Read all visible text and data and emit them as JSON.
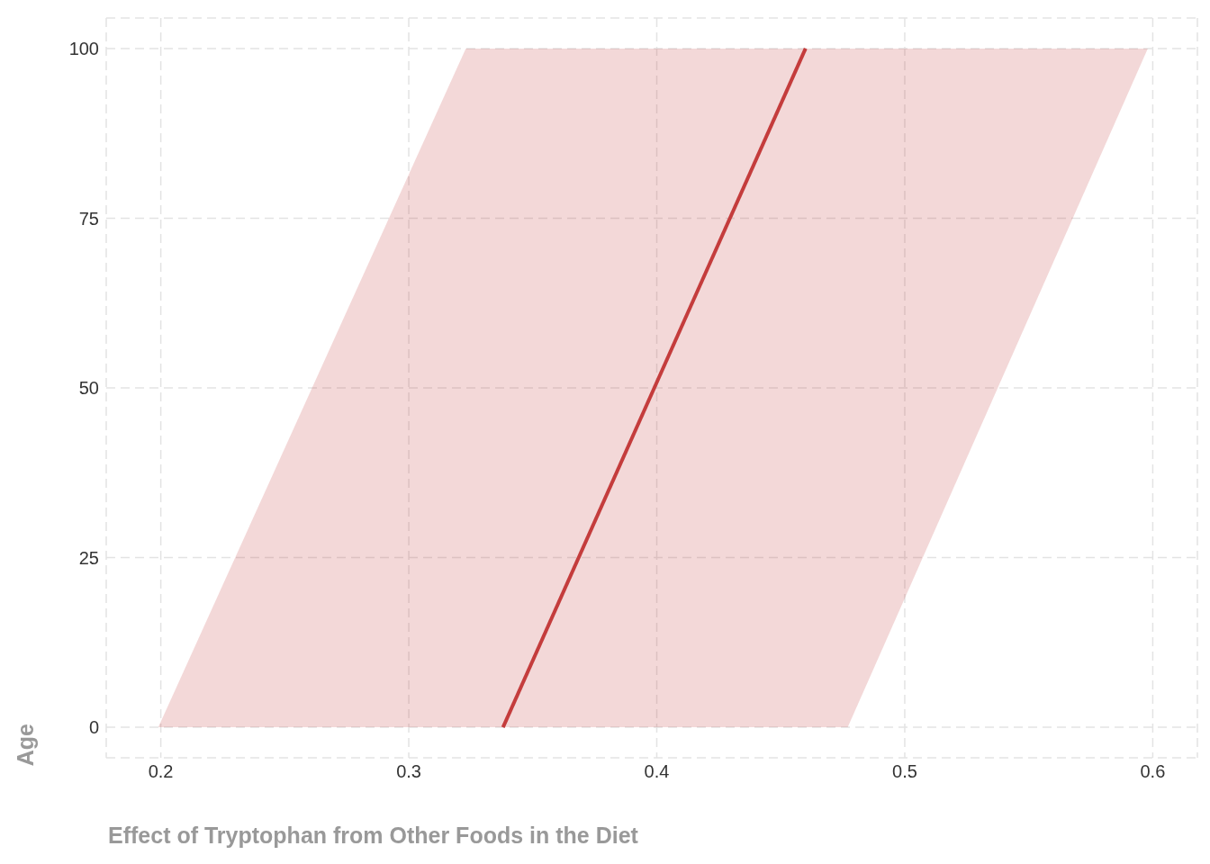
{
  "chart_data": {
    "type": "line",
    "orientation": "horizontal",
    "xlabel": "Effect of Tryptophan from Other Foods in the Diet",
    "ylabel": "Age",
    "series": [
      {
        "color": "#c43c3c",
        "x": [
          0,
          100
        ],
        "values": [
          0.338,
          0.46
        ],
        "lower": [
          0.199,
          0.323
        ],
        "upper": [
          0.477,
          0.598
        ]
      }
    ],
    "xlim": [
      0.178,
      0.618
    ],
    "xticks": [
      0.2,
      0.3,
      0.4,
      0.5,
      0.6
    ],
    "ylim": [
      -4.5,
      104.5
    ],
    "yticks": [
      0,
      25,
      50,
      75,
      100
    ],
    "grid": true,
    "marker": "none",
    "line_style": "solid"
  }
}
